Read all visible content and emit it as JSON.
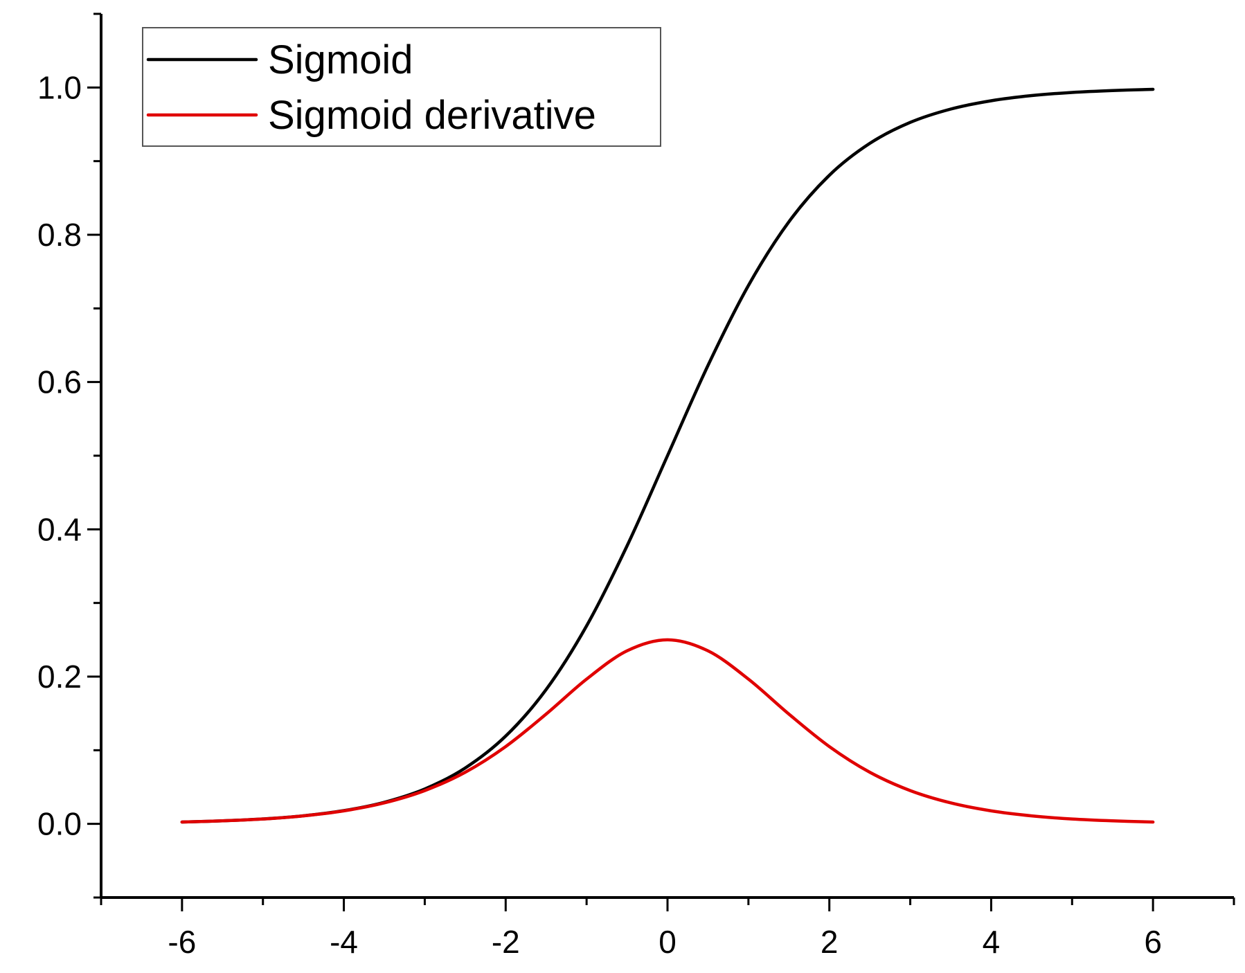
{
  "chart_data": {
    "type": "line",
    "title": "",
    "xlabel": "",
    "ylabel": "",
    "xlim": [
      -7,
      7
    ],
    "ylim": [
      -0.1,
      1.1
    ],
    "x_ticks": [
      -6,
      -4,
      -2,
      0,
      2,
      4,
      6
    ],
    "x_tick_labels": [
      "-6",
      "-4",
      "-2",
      "0",
      "2",
      "4",
      "6"
    ],
    "x_minor_tick_step": 1,
    "y_ticks": [
      0.0,
      0.2,
      0.4,
      0.6,
      0.8,
      1.0
    ],
    "y_tick_labels": [
      "0.0",
      "0.2",
      "0.4",
      "0.6",
      "0.8",
      "1.0"
    ],
    "y_minor_tick_step": 0.1,
    "grid": false,
    "legend_position": "top-left",
    "x": [
      -6,
      -5.5,
      -5,
      -4.5,
      -4,
      -3.5,
      -3,
      -2.5,
      -2,
      -1.5,
      -1,
      -0.5,
      0,
      0.5,
      1,
      1.5,
      2,
      2.5,
      3,
      3.5,
      4,
      4.5,
      5,
      5.5,
      6
    ],
    "series": [
      {
        "name": "Sigmoid",
        "color": "#000000",
        "values": [
          0.0025,
          0.0041,
          0.0067,
          0.011,
          0.018,
          0.0293,
          0.0474,
          0.0759,
          0.1192,
          0.1824,
          0.2689,
          0.3775,
          0.5,
          0.6225,
          0.7311,
          0.8176,
          0.8808,
          0.9241,
          0.9526,
          0.9707,
          0.982,
          0.989,
          0.9933,
          0.9959,
          0.9975
        ]
      },
      {
        "name": "Sigmoid derivative",
        "color": "#e00000",
        "values": [
          0.0025,
          0.0041,
          0.0066,
          0.0109,
          0.0177,
          0.0285,
          0.0452,
          0.0701,
          0.105,
          0.1491,
          0.1966,
          0.235,
          0.25,
          0.235,
          0.1966,
          0.1491,
          0.105,
          0.0701,
          0.0452,
          0.0285,
          0.0177,
          0.0109,
          0.0066,
          0.0041,
          0.0025
        ]
      }
    ]
  }
}
